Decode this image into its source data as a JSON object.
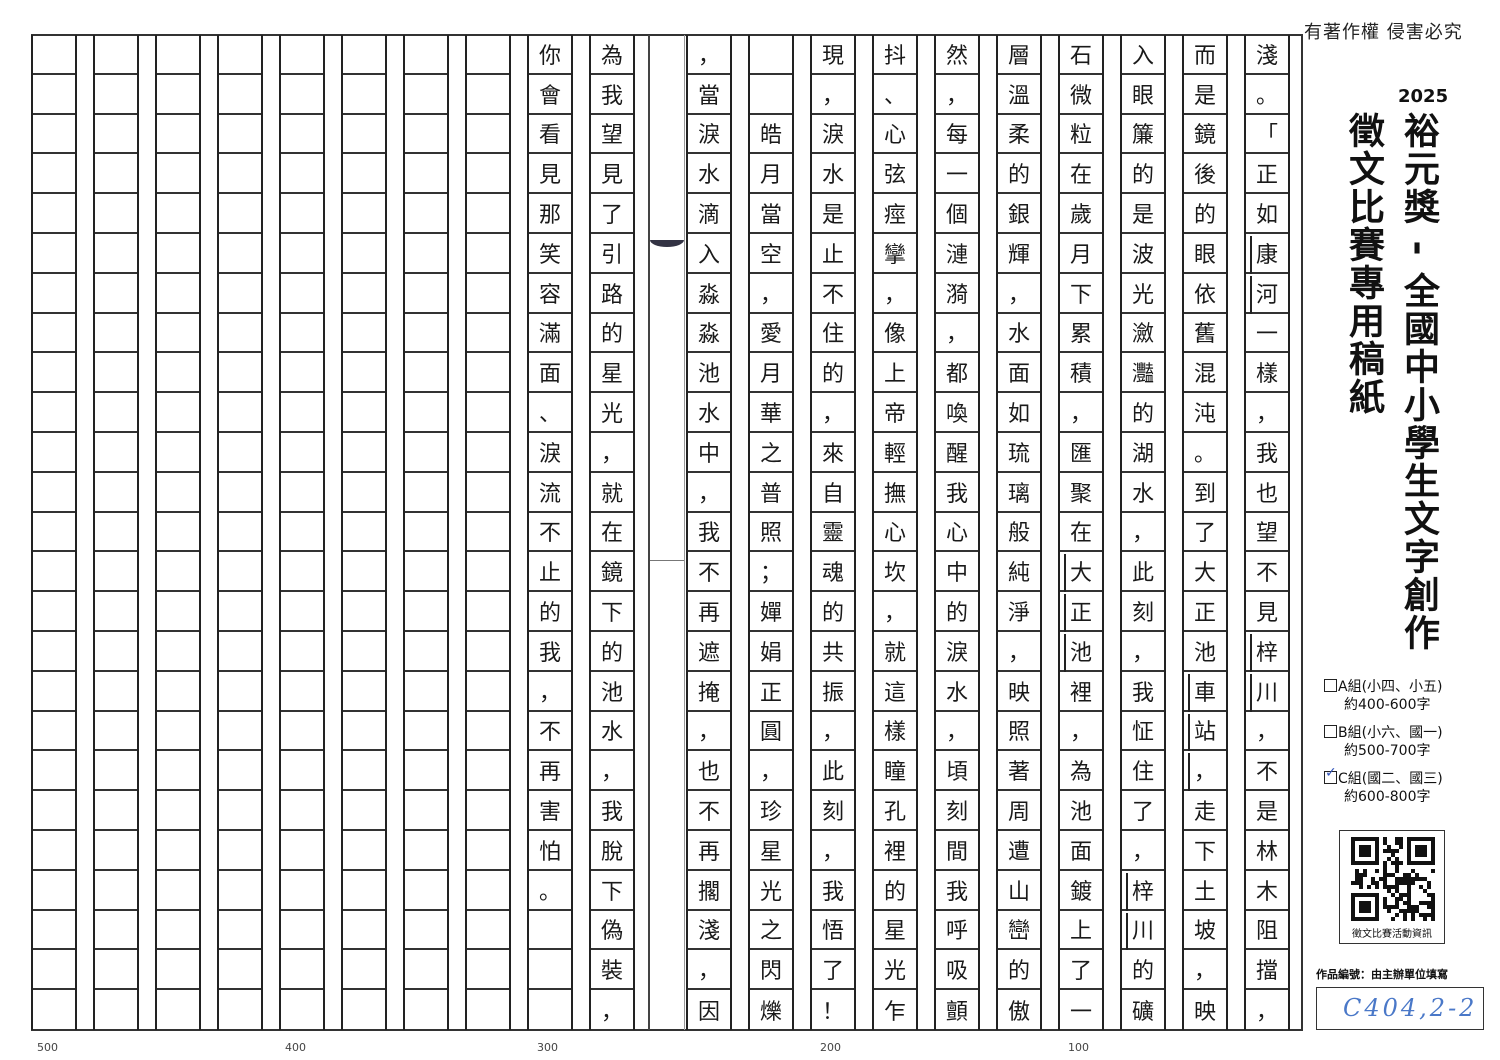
{
  "header": {
    "copyright": "有著作權 侵害必究",
    "year": "2025",
    "title_line1": "裕元獎 - 全國中小學生文字創作",
    "title_line2": "徵文比賽專用稿紙"
  },
  "groups": [
    {
      "label": "A組(小四、小五)",
      "requirement": "約400-600字",
      "checked": false
    },
    {
      "label": "B組(小六、國一)",
      "requirement": "約500-700字",
      "checked": false
    },
    {
      "label": "C組(國二、國三)",
      "requirement": "約600-800字",
      "checked": true
    }
  ],
  "qr": {
    "caption": "徵文比賽活動資訊",
    "icon": "qr-code-icon"
  },
  "entry_id": {
    "label": "作品編號：由主辦單位填寫",
    "value": "C404,2-2"
  },
  "essay": {
    "rows_per_column": 25,
    "columns": [
      "淺。「正如康河一樣，我也望不見梓川，不是林木阻擋，",
      "而是鏡後的眼依舊混沌。到了大正池車站，走下土坡，映",
      "入眼簾的是波光瀲灩的湖水，此刻，我怔住了，梓川的礦",
      "石微粒在歲月下累積，匯聚在大正池裡，為池面鍍上了一",
      "層溫柔的銀輝，水面如琉璃般純淨，映照著周遭山巒的傲",
      "然，每一個漣漪，都喚醒我心中的淚水，頃刻間我呼吸顫",
      "抖、心弦痙攣，像上帝輕撫心坎，就這樣瞳孔裡的星光乍",
      "現，淚水是止不住的，來自靈魂的共振，此刻，我悟了！",
      "  皓月當空，愛月華之普照；嬋娟正圓，珍星光之閃爍",
      "，當淚水滴入淼淼池水中，我不再遮掩，也不再擱淺，因",
      "為我望見了引路的星光，就在鏡下的池水，我脫下偽裝，",
      "你會看見那笑容滿面、淚流不止的我，不再害怕。   ",
      "",
      "",
      "",
      "",
      "",
      "",
      "",
      ""
    ],
    "proper_noun_marks": [
      {
        "column": 0,
        "from_row": 5,
        "to_row": 6
      },
      {
        "column": 0,
        "from_row": 15,
        "to_row": 16
      },
      {
        "column": 1,
        "from_row": 16,
        "to_row": 18
      },
      {
        "column": 2,
        "from_row": 21,
        "to_row": 22
      },
      {
        "column": 3,
        "from_row": 13,
        "to_row": 15
      }
    ]
  },
  "count_markers": [
    "100",
    "200",
    "300",
    "400",
    "500"
  ],
  "colors": {
    "ink": "#1a1a1a",
    "grid": "#222222",
    "checkmark": "#3355bb",
    "handwritten_id": "#4a78c8"
  }
}
